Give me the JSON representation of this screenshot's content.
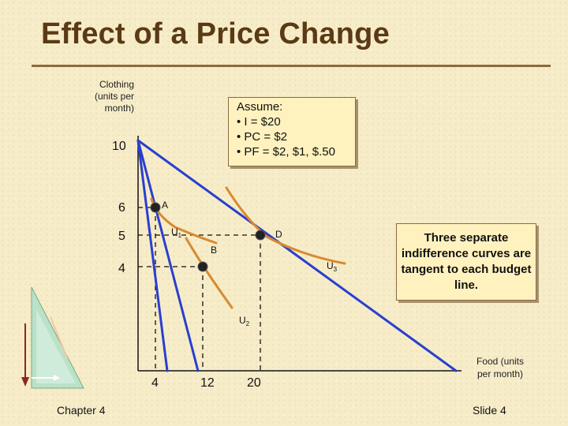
{
  "slide": {
    "title": "Effect of a Price Change",
    "footer_left": "Chapter 4",
    "footer_right": "Slide 4"
  },
  "axes": {
    "y_label": "Clothing\n(units per\nmonth)",
    "x_label": "Food (units\nper month)",
    "y_ticks": [
      "10",
      "6",
      "5",
      "4"
    ],
    "x_ticks": [
      "4",
      "12",
      "20"
    ]
  },
  "assumptions": {
    "heading": "Assume:",
    "income": "• I = $20",
    "pc": "• PC  = $2",
    "pf": "• PF  = $2, $1, $.50"
  },
  "callout": "Three separate indifference curves are tangent to each budget line.",
  "points": [
    {
      "id": "A",
      "label": "A",
      "food": 4,
      "clothing": 6
    },
    {
      "id": "B",
      "label": "B",
      "food": 12,
      "clothing": 4
    },
    {
      "id": "D",
      "label": "D",
      "food": 20,
      "clothing": 5
    }
  ],
  "curves": [
    {
      "name": "U",
      "sub": "1"
    },
    {
      "name": "U",
      "sub": "2"
    },
    {
      "name": "U",
      "sub": "3"
    }
  ],
  "colors": {
    "budget_line": "#2a3fd0",
    "indifference": "#d88a30",
    "title": "#5a3a14"
  }
}
